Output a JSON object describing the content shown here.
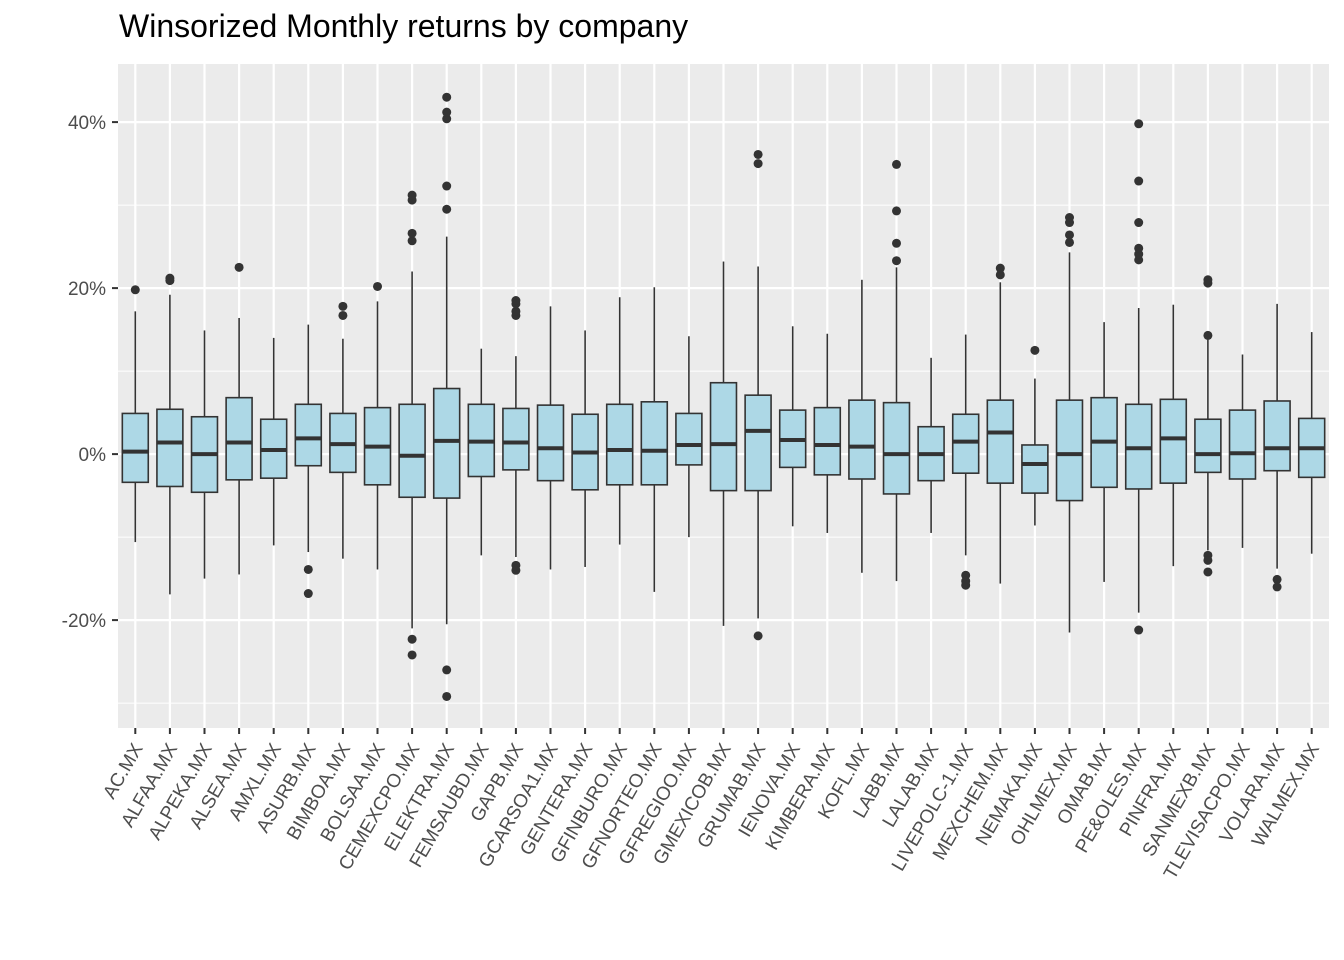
{
  "chart_data": {
    "type": "boxplot",
    "title": "Winsorized Monthly returns by company",
    "xlabel": "",
    "ylabel": "",
    "y_unit": "%",
    "ylim": [
      -33,
      47
    ],
    "y_ticks": [
      -20,
      0,
      20,
      40
    ],
    "y_tick_labels": [
      "-20%",
      "0%",
      "20%",
      "40%"
    ],
    "grid": true,
    "legend": "none",
    "colors": {
      "panel_background": "#ebebeb",
      "grid_line": "#ffffff",
      "box_fill": "#add8e6",
      "box_outline": "#333333",
      "outlier": "#333333"
    },
    "categories": [
      "AC.MX",
      "ALFAA.MX",
      "ALPEKA.MX",
      "ALSEA.MX",
      "AMXL.MX",
      "ASURB.MX",
      "BIMBOA.MX",
      "BOLSAA.MX",
      "CEMEXCPO.MX",
      "ELEKTRA.MX",
      "FEMSAUBD.MX",
      "GAPB.MX",
      "GCARSOA1.MX",
      "GENTERA.MX",
      "GFINBURO.MX",
      "GFNORTEO.MX",
      "GFREGIOO.MX",
      "GMEXICOB.MX",
      "GRUMAB.MX",
      "IENOVA.MX",
      "KIMBERA.MX",
      "KOFL.MX",
      "LABB.MX",
      "LALAB.MX",
      "LIVEPOLC-1.MX",
      "MEXCHEM.MX",
      "NEMAKA.MX",
      "OHLMEX.MX",
      "OMAB.MX",
      "PE&OLES.MX",
      "PINFRA.MX",
      "SANMEXB.MX",
      "TLEVISACPO.MX",
      "VOLARA.MX",
      "WALMEX.MX"
    ],
    "boxes": [
      {
        "name": "AC.MX",
        "lower": -10.6,
        "q1": -3.4,
        "median": 0.3,
        "q3": 4.9,
        "upper": 17.2,
        "outliers": [
          19.8
        ]
      },
      {
        "name": "ALFAA.MX",
        "lower": -16.9,
        "q1": -3.9,
        "median": 1.4,
        "q3": 5.4,
        "upper": 19.2,
        "outliers": [
          20.9,
          21.2
        ]
      },
      {
        "name": "ALPEKA.MX",
        "lower": -15.0,
        "q1": -4.6,
        "median": 0.0,
        "q3": 4.5,
        "upper": 14.9,
        "outliers": []
      },
      {
        "name": "ALSEA.MX",
        "lower": -14.5,
        "q1": -3.1,
        "median": 1.4,
        "q3": 6.8,
        "upper": 16.4,
        "outliers": [
          22.5
        ]
      },
      {
        "name": "AMXL.MX",
        "lower": -11.0,
        "q1": -2.9,
        "median": 0.5,
        "q3": 4.2,
        "upper": 14.0,
        "outliers": []
      },
      {
        "name": "ASURB.MX",
        "lower": -11.8,
        "q1": -1.4,
        "median": 1.9,
        "q3": 6.0,
        "upper": 15.6,
        "outliers": [
          -13.9,
          -16.8
        ]
      },
      {
        "name": "BIMBOA.MX",
        "lower": -12.6,
        "q1": -2.2,
        "median": 1.2,
        "q3": 4.9,
        "upper": 13.9,
        "outliers": [
          16.7,
          17.8
        ]
      },
      {
        "name": "BOLSAA.MX",
        "lower": -13.9,
        "q1": -3.7,
        "median": 0.9,
        "q3": 5.6,
        "upper": 18.4,
        "outliers": [
          20.2
        ]
      },
      {
        "name": "CEMEXCPO.MX",
        "lower": -21.0,
        "q1": -5.2,
        "median": -0.2,
        "q3": 6.0,
        "upper": 22.0,
        "outliers": [
          -22.3,
          -24.2,
          25.7,
          26.6,
          30.6,
          31.2
        ]
      },
      {
        "name": "ELEKTRA.MX",
        "lower": -20.5,
        "q1": -5.3,
        "median": 1.6,
        "q3": 7.9,
        "upper": 26.2,
        "outliers": [
          -26.0,
          -29.2,
          29.5,
          32.3,
          40.4,
          41.2,
          43.0
        ]
      },
      {
        "name": "FEMSAUBD.MX",
        "lower": -12.2,
        "q1": -2.7,
        "median": 1.5,
        "q3": 6.0,
        "upper": 12.7,
        "outliers": []
      },
      {
        "name": "GAPB.MX",
        "lower": -12.4,
        "q1": -1.9,
        "median": 1.4,
        "q3": 5.5,
        "upper": 11.8,
        "outliers": [
          -13.4,
          -14.0,
          16.7,
          17.2,
          18.1,
          18.5
        ]
      },
      {
        "name": "GCARSOA1.MX",
        "lower": -13.9,
        "q1": -3.2,
        "median": 0.7,
        "q3": 5.9,
        "upper": 17.8,
        "outliers": []
      },
      {
        "name": "GENTERA.MX",
        "lower": -13.6,
        "q1": -4.3,
        "median": 0.2,
        "q3": 4.8,
        "upper": 14.9,
        "outliers": []
      },
      {
        "name": "GFINBURO.MX",
        "lower": -10.9,
        "q1": -3.7,
        "median": 0.5,
        "q3": 6.0,
        "upper": 18.9,
        "outliers": []
      },
      {
        "name": "GFNORTEO.MX",
        "lower": -16.6,
        "q1": -3.7,
        "median": 0.4,
        "q3": 6.3,
        "upper": 20.1,
        "outliers": []
      },
      {
        "name": "GFREGIOO.MX",
        "lower": -10.0,
        "q1": -1.3,
        "median": 1.1,
        "q3": 4.9,
        "upper": 14.2,
        "outliers": []
      },
      {
        "name": "GMEXICOB.MX",
        "lower": -20.7,
        "q1": -4.4,
        "median": 1.2,
        "q3": 8.6,
        "upper": 23.2,
        "outliers": []
      },
      {
        "name": "GRUMAB.MX",
        "lower": -19.8,
        "q1": -4.4,
        "median": 2.8,
        "q3": 7.1,
        "upper": 22.6,
        "outliers": [
          -21.9,
          35.0,
          36.1
        ]
      },
      {
        "name": "IENOVA.MX",
        "lower": -8.7,
        "q1": -1.6,
        "median": 1.7,
        "q3": 5.3,
        "upper": 15.4,
        "outliers": []
      },
      {
        "name": "KIMBERA.MX",
        "lower": -9.5,
        "q1": -2.5,
        "median": 1.1,
        "q3": 5.6,
        "upper": 14.5,
        "outliers": []
      },
      {
        "name": "KOFL.MX",
        "lower": -14.3,
        "q1": -3.0,
        "median": 0.9,
        "q3": 6.5,
        "upper": 21.0,
        "outliers": []
      },
      {
        "name": "LABB.MX",
        "lower": -15.3,
        "q1": -4.8,
        "median": 0.0,
        "q3": 6.2,
        "upper": 22.5,
        "outliers": [
          23.3,
          25.4,
          29.3,
          34.9
        ]
      },
      {
        "name": "LALAB.MX",
        "lower": -9.5,
        "q1": -3.2,
        "median": 0.0,
        "q3": 3.3,
        "upper": 11.6,
        "outliers": []
      },
      {
        "name": "LIVEPOLC-1.MX",
        "lower": -12.2,
        "q1": -2.3,
        "median": 1.5,
        "q3": 4.8,
        "upper": 14.4,
        "outliers": [
          -14.6,
          -15.3,
          -15.8
        ]
      },
      {
        "name": "MEXCHEM.MX",
        "lower": -15.6,
        "q1": -3.5,
        "median": 2.6,
        "q3": 6.5,
        "upper": 20.7,
        "outliers": [
          21.6,
          22.4
        ]
      },
      {
        "name": "NEMAKA.MX",
        "lower": -8.6,
        "q1": -4.7,
        "median": -1.2,
        "q3": 1.1,
        "upper": 9.1,
        "outliers": [
          12.5
        ]
      },
      {
        "name": "OHLMEX.MX",
        "lower": -21.5,
        "q1": -5.6,
        "median": 0.0,
        "q3": 6.5,
        "upper": 24.3,
        "outliers": [
          25.5,
          26.4,
          27.9,
          28.5
        ]
      },
      {
        "name": "OMAB.MX",
        "lower": -15.4,
        "q1": -4.0,
        "median": 1.5,
        "q3": 6.8,
        "upper": 15.9,
        "outliers": []
      },
      {
        "name": "PE&OLES.MX",
        "lower": -19.1,
        "q1": -4.2,
        "median": 0.7,
        "q3": 6.0,
        "upper": 17.6,
        "outliers": [
          -21.2,
          23.4,
          24.1,
          24.8,
          27.9,
          32.9,
          39.8
        ]
      },
      {
        "name": "PINFRA.MX",
        "lower": -13.5,
        "q1": -3.5,
        "median": 1.9,
        "q3": 6.6,
        "upper": 18.0,
        "outliers": []
      },
      {
        "name": "SANMEXB.MX",
        "lower": -11.6,
        "q1": -2.2,
        "median": 0.0,
        "q3": 4.2,
        "upper": 13.8,
        "outliers": [
          -12.2,
          -12.8,
          -14.2,
          14.3,
          20.6,
          21.0
        ]
      },
      {
        "name": "TLEVISACPO.MX",
        "lower": -11.3,
        "q1": -3.0,
        "median": 0.1,
        "q3": 5.3,
        "upper": 12.0,
        "outliers": []
      },
      {
        "name": "VOLARA.MX",
        "lower": -13.8,
        "q1": -2.0,
        "median": 0.7,
        "q3": 6.4,
        "upper": 18.1,
        "outliers": [
          -15.1,
          -16.0
        ]
      },
      {
        "name": "WALMEX.MX",
        "lower": -12.0,
        "q1": -2.8,
        "median": 0.7,
        "q3": 4.3,
        "upper": 14.7,
        "outliers": []
      }
    ]
  }
}
